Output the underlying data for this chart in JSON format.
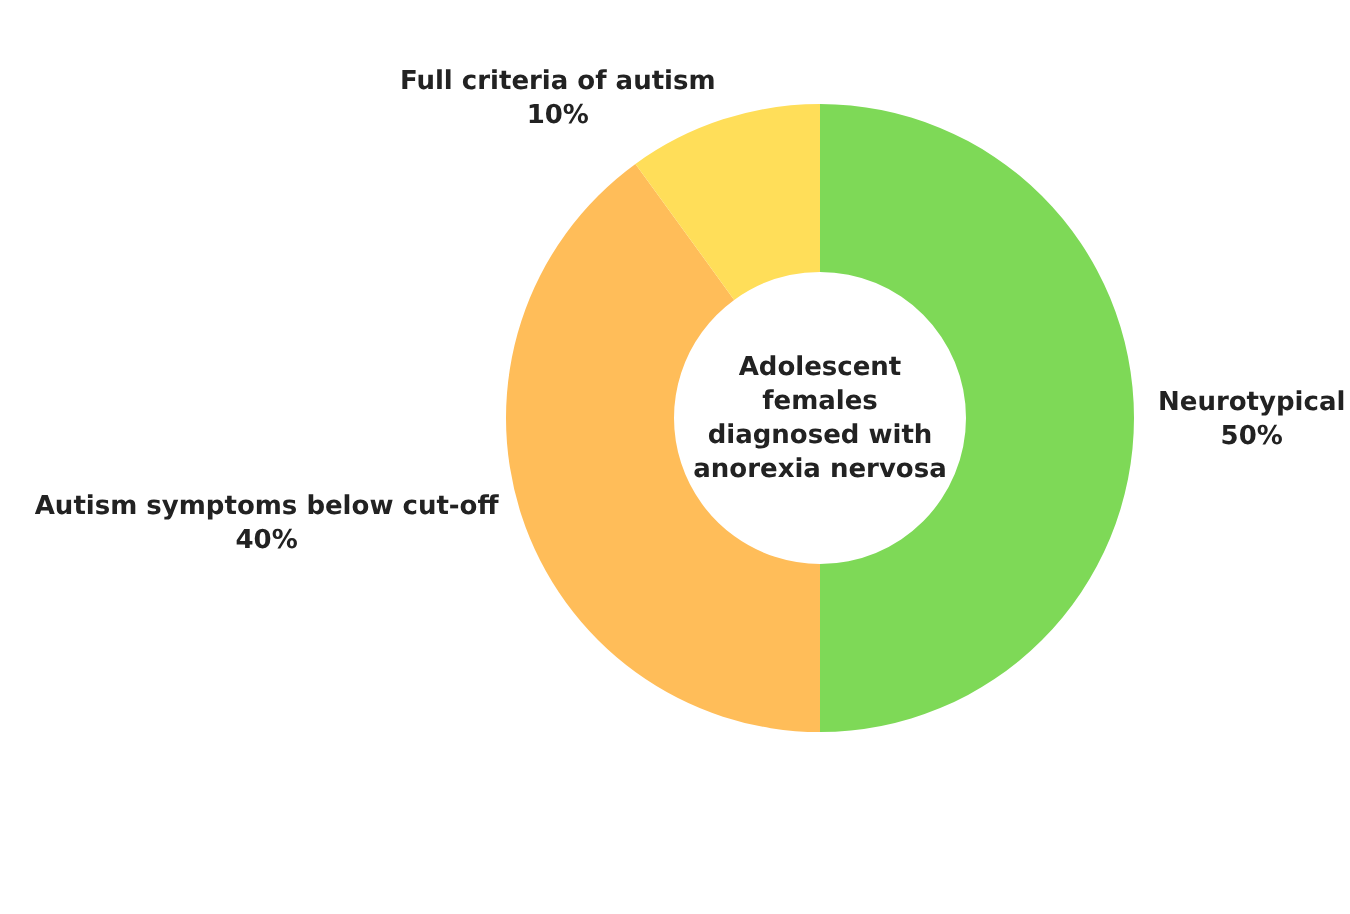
{
  "chart_data": {
    "type": "donut",
    "title": "Adolescent females diagnosed with anorexia nervosa",
    "categories": [
      "Neurotypical",
      "Autism symptoms below cut-off",
      "Full criteria of autism"
    ],
    "values": [
      50,
      40,
      10
    ],
    "colors": [
      "#7ed957",
      "#ffbd59",
      "#ffde59"
    ],
    "value_labels": [
      "50%",
      "40%",
      "10%"
    ]
  }
}
